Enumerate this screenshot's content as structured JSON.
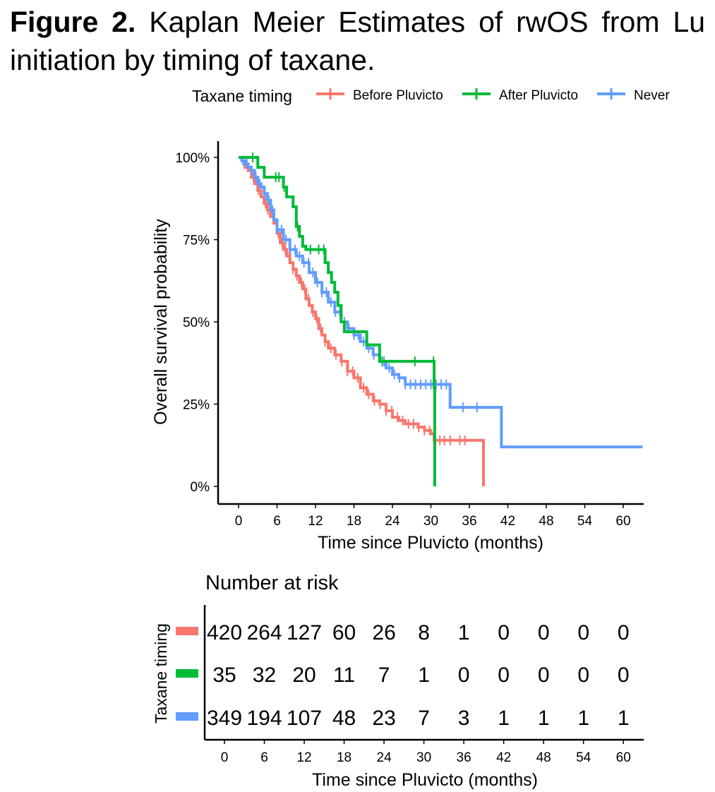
{
  "caption": {
    "label": "Figure 2.",
    "text": "Kaplan Meier Estimates of rwOS from Lu initiation by timing of taxane."
  },
  "chart_data": {
    "type": "line",
    "subtype": "kaplan-meier",
    "legend": {
      "title": "Taxane timing",
      "position": "top",
      "entries": [
        "Before Pluvicto",
        "After Pluvicto",
        "Never"
      ]
    },
    "xlabel": "Time since Pluvicto (months)",
    "ylabel": "Overall survival probability",
    "xlim": [
      -2,
      63
    ],
    "ylim": [
      0,
      1
    ],
    "x_ticks": [
      0,
      6,
      12,
      18,
      24,
      30,
      36,
      42,
      48,
      54,
      60
    ],
    "y_ticks": [
      0,
      0.25,
      0.5,
      0.75,
      1
    ],
    "y_tick_labels": [
      "0%",
      "25%",
      "50%",
      "75%",
      "100%"
    ],
    "grid": false,
    "series": [
      {
        "name": "Before Pluvicto",
        "color": "#F8766D",
        "steps": [
          [
            0,
            1
          ],
          [
            0.5,
            0.99
          ],
          [
            1,
            0.97
          ],
          [
            1.5,
            0.96
          ],
          [
            2,
            0.94
          ],
          [
            2.5,
            0.92
          ],
          [
            3,
            0.9
          ],
          [
            3.5,
            0.88
          ],
          [
            4,
            0.86
          ],
          [
            4.5,
            0.84
          ],
          [
            5,
            0.82
          ],
          [
            5.5,
            0.8
          ],
          [
            6,
            0.77
          ],
          [
            6.5,
            0.74
          ],
          [
            7,
            0.72
          ],
          [
            7.5,
            0.7
          ],
          [
            8,
            0.68
          ],
          [
            8.5,
            0.66
          ],
          [
            9,
            0.64
          ],
          [
            9.5,
            0.62
          ],
          [
            10,
            0.6
          ],
          [
            10.5,
            0.57
          ],
          [
            11,
            0.55
          ],
          [
            11.5,
            0.53
          ],
          [
            12,
            0.51
          ],
          [
            12.5,
            0.48
          ],
          [
            13,
            0.46
          ],
          [
            13.5,
            0.44
          ],
          [
            14,
            0.42
          ],
          [
            15,
            0.4
          ],
          [
            16,
            0.38
          ],
          [
            17,
            0.35
          ],
          [
            18,
            0.33
          ],
          [
            19,
            0.3
          ],
          [
            20,
            0.28
          ],
          [
            21,
            0.26
          ],
          [
            22,
            0.25
          ],
          [
            23,
            0.23
          ],
          [
            24,
            0.21
          ],
          [
            25,
            0.2
          ],
          [
            26,
            0.19
          ],
          [
            28,
            0.18
          ],
          [
            29,
            0.17
          ],
          [
            30,
            0.16
          ],
          [
            30.5,
            0.14
          ],
          [
            38.2,
            0.14
          ],
          [
            38.2,
            0
          ]
        ],
        "censor_x": [
          2.3,
          3.1,
          4.2,
          4.6,
          5.4,
          6.2,
          6.8,
          7.3,
          7.9,
          8.5,
          9.1,
          9.8,
          10.3,
          10.9,
          11.6,
          12.2,
          12.8,
          13.5,
          14.4,
          15.2,
          16.1,
          17.0,
          17.8,
          18.6,
          19.5,
          20.3,
          21.2,
          22.1,
          23.0,
          23.9,
          24.8,
          25.6,
          26.5,
          27.3,
          28.1,
          29.0,
          29.8,
          30.6,
          31.4,
          32.1,
          33.0,
          34.5,
          35.3
        ]
      },
      {
        "name": "After Pluvicto",
        "color": "#00BA38",
        "steps": [
          [
            0,
            1
          ],
          [
            3,
            0.97
          ],
          [
            4,
            0.94
          ],
          [
            7,
            0.91
          ],
          [
            7.5,
            0.88
          ],
          [
            8.5,
            0.85
          ],
          [
            9,
            0.79
          ],
          [
            9.5,
            0.76
          ],
          [
            10,
            0.73
          ],
          [
            10.5,
            0.72
          ],
          [
            13.5,
            0.68
          ],
          [
            14,
            0.65
          ],
          [
            14.5,
            0.62
          ],
          [
            15,
            0.59
          ],
          [
            15.5,
            0.55
          ],
          [
            16,
            0.5
          ],
          [
            16.5,
            0.47
          ],
          [
            20,
            0.43
          ],
          [
            22,
            0.38
          ],
          [
            30.5,
            0.38
          ],
          [
            30.5,
            0.3
          ],
          [
            30.6,
            0
          ]
        ],
        "censor_x": [
          2.2,
          5.8,
          6.3,
          7.1,
          9.2,
          11.2,
          12.5,
          13.3,
          22.4,
          27.5,
          30.4
        ]
      },
      {
        "name": "Never",
        "color": "#619CFF",
        "steps": [
          [
            0,
            1
          ],
          [
            0.5,
            0.99
          ],
          [
            1,
            0.98
          ],
          [
            1.5,
            0.97
          ],
          [
            2,
            0.96
          ],
          [
            2.5,
            0.94
          ],
          [
            3,
            0.92
          ],
          [
            3.5,
            0.91
          ],
          [
            4,
            0.89
          ],
          [
            4.5,
            0.87
          ],
          [
            5,
            0.84
          ],
          [
            5.5,
            0.81
          ],
          [
            6,
            0.78
          ],
          [
            7,
            0.75
          ],
          [
            8,
            0.72
          ],
          [
            9,
            0.7
          ],
          [
            10,
            0.68
          ],
          [
            11,
            0.65
          ],
          [
            12,
            0.62
          ],
          [
            13,
            0.59
          ],
          [
            14,
            0.56
          ],
          [
            15,
            0.53
          ],
          [
            16,
            0.5
          ],
          [
            17,
            0.48
          ],
          [
            18,
            0.46
          ],
          [
            19,
            0.44
          ],
          [
            20,
            0.42
          ],
          [
            21,
            0.4
          ],
          [
            22,
            0.38
          ],
          [
            23,
            0.36
          ],
          [
            24,
            0.34
          ],
          [
            25,
            0.33
          ],
          [
            26,
            0.31
          ],
          [
            33,
            0.3
          ],
          [
            33,
            0.24
          ],
          [
            41,
            0.24
          ],
          [
            41,
            0.12
          ],
          [
            63,
            0.12
          ]
        ],
        "censor_x": [
          0.7,
          1.3,
          2.0,
          2.7,
          3.3,
          4.1,
          4.7,
          5.3,
          6.0,
          6.7,
          7.4,
          8.1,
          8.8,
          9.5,
          10.2,
          10.9,
          11.6,
          12.3,
          13.0,
          13.7,
          14.4,
          15.1,
          15.8,
          16.5,
          17.2,
          18.0,
          18.7,
          19.5,
          20.3,
          21.1,
          21.9,
          22.7,
          23.5,
          24.3,
          25.1,
          26.0,
          26.8,
          27.6,
          28.4,
          29.2,
          30.0,
          30.8,
          31.6,
          32.4,
          35.0,
          37.2
        ]
      }
    ],
    "risk_table": {
      "title": "Number at risk",
      "ylabel": "Taxane timing",
      "xlabel": "Time since Pluvicto (months)",
      "x_ticks": [
        0,
        6,
        12,
        18,
        24,
        30,
        36,
        42,
        48,
        54,
        60
      ],
      "rows": [
        {
          "name": "Before Pluvicto",
          "color": "#F8766D",
          "counts": [
            "420",
            "264",
            "127",
            "60",
            "26",
            "8",
            "1",
            "0",
            "0",
            "0",
            "0"
          ]
        },
        {
          "name": "After Pluvicto",
          "color": "#00BA38",
          "counts": [
            "35",
            "32",
            "20",
            "11",
            "7",
            "1",
            "0",
            "0",
            "0",
            "0",
            "0"
          ]
        },
        {
          "name": "Never",
          "color": "#619CFF",
          "counts": [
            "349",
            "194",
            "107",
            "48",
            "23",
            "7",
            "3",
            "1",
            "1",
            "1",
            "1"
          ]
        }
      ]
    }
  }
}
